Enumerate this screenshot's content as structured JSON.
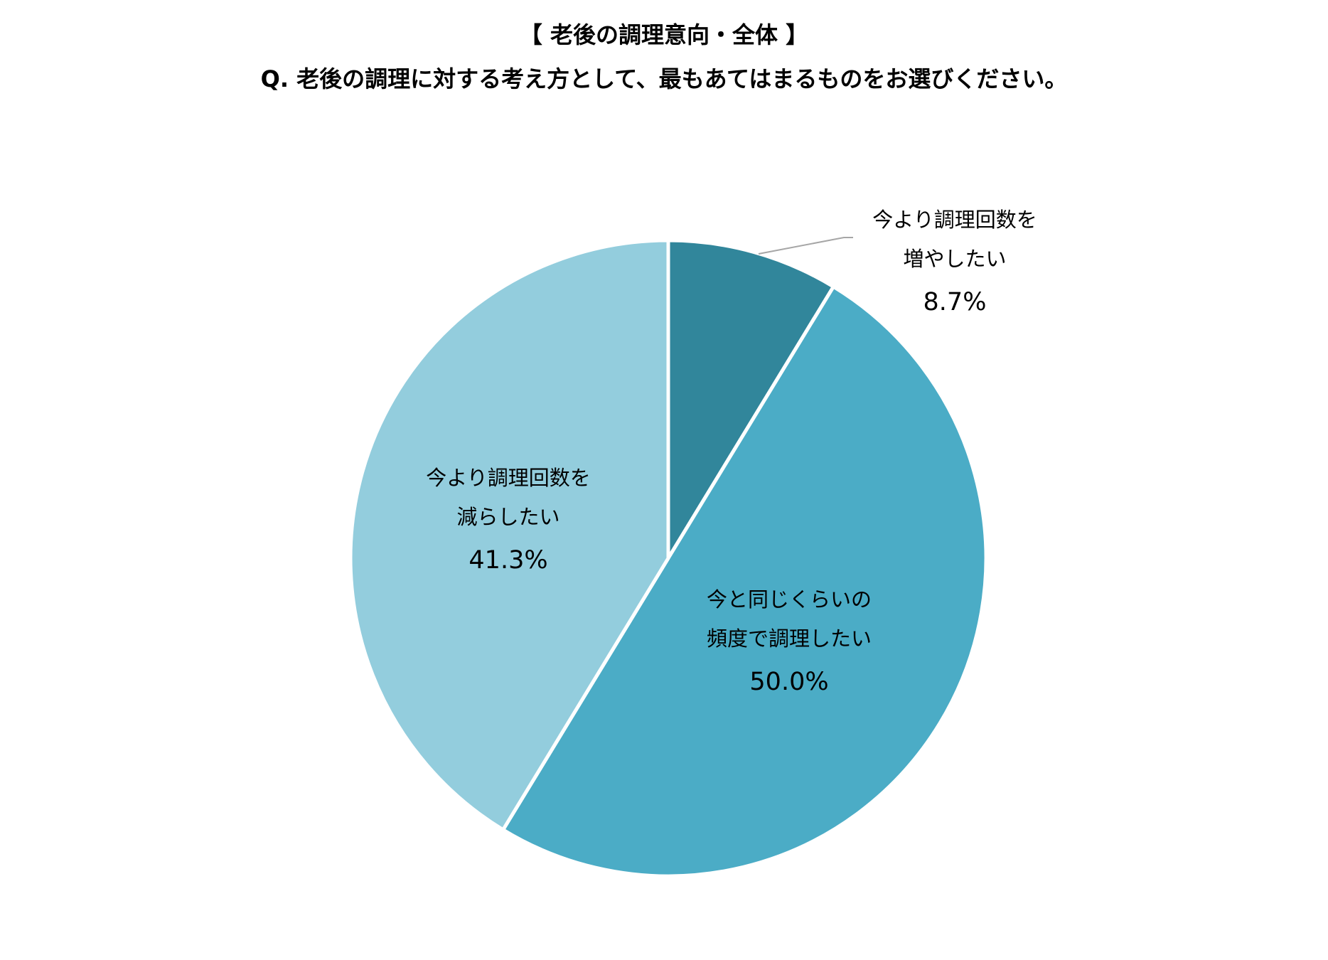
{
  "header": {
    "title": "【 老後の調理意向・全体 】",
    "question": "Q. 老後の調理に対する考え方として、最もあてはまるものをお選びください。"
  },
  "chart_data": {
    "type": "pie",
    "start": "12 o'clock, clockwise",
    "slices": [
      {
        "label_lines": [
          "今より調理回数を",
          "増やしたい"
        ],
        "value": 8.7,
        "value_label": "8.7%",
        "color": "#31869b"
      },
      {
        "label_lines": [
          "今と同じくらいの",
          "頻度で調理したい"
        ],
        "value": 50.0,
        "value_label": "50.0%",
        "color": "#4bacc6"
      },
      {
        "label_lines": [
          "今より調理回数を",
          "減らしたい"
        ],
        "value": 41.3,
        "value_label": "41.3%",
        "color": "#93cddd"
      }
    ],
    "slice_border_color": "#ffffff",
    "leader_line_color": "#a6a6a6"
  }
}
